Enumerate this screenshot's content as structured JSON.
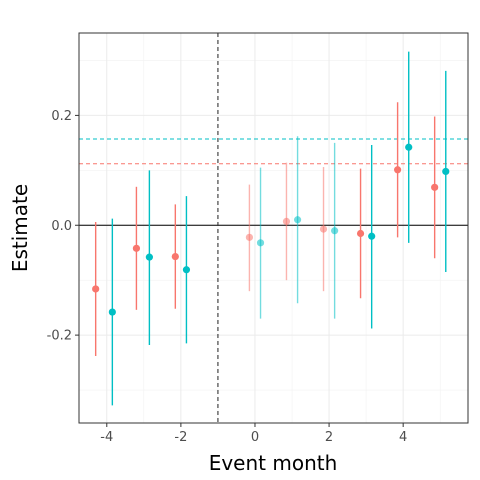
{
  "chart_data": {
    "type": "scatter",
    "title": "",
    "xlabel": "Event month",
    "ylabel": "Estimate",
    "xlim": [
      -4.75,
      5.75
    ],
    "ylim": [
      -0.36,
      0.35
    ],
    "x_ticks": [
      -4,
      -2,
      0,
      2,
      4
    ],
    "x_tick_labels": [
      "-4",
      "-2",
      "0",
      "2",
      "4"
    ],
    "y_ticks": [
      -0.2,
      0.0,
      0.2
    ],
    "y_tick_labels": [
      "-0.2",
      "0.0",
      "0.2"
    ],
    "grid": true,
    "legend": "none",
    "event_line_x": -1,
    "zero_line_y": 0,
    "series": [
      {
        "color": "#F8766D",
        "reference_line": 0.112,
        "points": [
          {
            "x": -4.3,
            "y": -0.116,
            "lo": -0.238,
            "hi": 0.006,
            "faded": false
          },
          {
            "x": -3.2,
            "y": -0.042,
            "lo": -0.154,
            "hi": 0.07,
            "faded": false
          },
          {
            "x": -2.15,
            "y": -0.057,
            "lo": -0.152,
            "hi": 0.038,
            "faded": false
          },
          {
            "x": -0.15,
            "y": -0.022,
            "lo": -0.12,
            "hi": 0.074,
            "faded": true
          },
          {
            "x": 0.85,
            "y": 0.007,
            "lo": -0.1,
            "hi": 0.114,
            "faded": true
          },
          {
            "x": 1.85,
            "y": -0.007,
            "lo": -0.12,
            "hi": 0.106,
            "faded": true
          },
          {
            "x": 2.85,
            "y": -0.015,
            "lo": -0.133,
            "hi": 0.103,
            "faded": false
          },
          {
            "x": 3.85,
            "y": 0.101,
            "lo": -0.022,
            "hi": 0.224,
            "faded": false
          },
          {
            "x": 4.85,
            "y": 0.069,
            "lo": -0.06,
            "hi": 0.198,
            "faded": false
          }
        ]
      },
      {
        "color": "#00BFC4",
        "reference_line": 0.157,
        "points": [
          {
            "x": -3.85,
            "y": -0.158,
            "lo": -0.328,
            "hi": 0.012,
            "faded": false
          },
          {
            "x": -2.85,
            "y": -0.058,
            "lo": -0.218,
            "hi": 0.1,
            "faded": false
          },
          {
            "x": -1.85,
            "y": -0.081,
            "lo": -0.215,
            "hi": 0.053,
            "faded": false
          },
          {
            "x": 0.15,
            "y": -0.032,
            "lo": -0.17,
            "hi": 0.105,
            "faded": true
          },
          {
            "x": 1.15,
            "y": 0.01,
            "lo": -0.142,
            "hi": 0.162,
            "faded": true
          },
          {
            "x": 2.15,
            "y": -0.01,
            "lo": -0.17,
            "hi": 0.15,
            "faded": true
          },
          {
            "x": 3.15,
            "y": -0.02,
            "lo": -0.188,
            "hi": 0.146,
            "faded": false
          },
          {
            "x": 4.15,
            "y": 0.142,
            "lo": -0.032,
            "hi": 0.316,
            "faded": false
          },
          {
            "x": 5.15,
            "y": 0.098,
            "lo": -0.085,
            "hi": 0.281,
            "faded": false
          }
        ]
      }
    ]
  }
}
